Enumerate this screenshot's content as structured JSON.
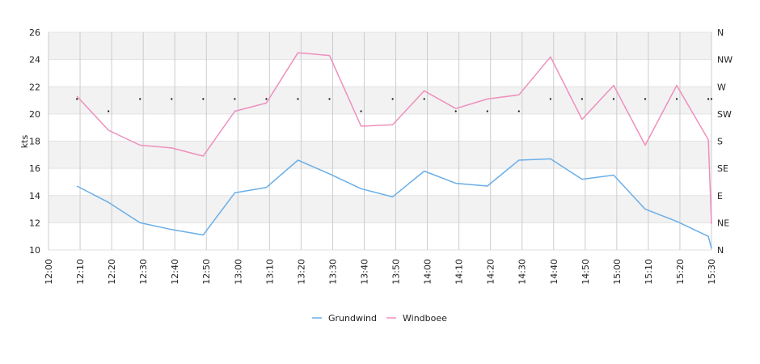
{
  "chart_data": {
    "type": "line",
    "ylabel": "kts",
    "ylim": [
      10,
      26
    ],
    "yticks": [
      10,
      12,
      14,
      16,
      18,
      20,
      22,
      24,
      26
    ],
    "x_range": [
      "12:00",
      "15:30"
    ],
    "x_ticks": [
      "12:00",
      "12:10",
      "12:20",
      "12:30",
      "12:40",
      "12:50",
      "13:00",
      "13:10",
      "13:20",
      "13:30",
      "13:40",
      "13:50",
      "14:00",
      "14:10",
      "14:20",
      "14:30",
      "14:40",
      "14:50",
      "15:00",
      "15:10",
      "15:20",
      "15:30"
    ],
    "right_axis_labels": [
      "N",
      "NE",
      "E",
      "SE",
      "S",
      "SW",
      "W",
      "NW",
      "N"
    ],
    "grid": true,
    "legend_position": "bottom",
    "series": [
      {
        "name": "Grundwind",
        "color": "#6aaee8",
        "x": [
          "12:09",
          "12:19",
          "12:29",
          "12:39",
          "12:49",
          "12:59",
          "13:09",
          "13:19",
          "13:29",
          "13:39",
          "13:49",
          "13:59",
          "14:09",
          "14:19",
          "14:29",
          "14:39",
          "14:49",
          "14:59",
          "15:09",
          "15:19",
          "15:29",
          "15:30"
        ],
        "values": [
          14.7,
          13.5,
          12.0,
          11.5,
          11.1,
          14.2,
          14.6,
          16.6,
          15.6,
          14.5,
          13.9,
          15.8,
          14.9,
          14.7,
          16.6,
          16.7,
          15.2,
          15.5,
          13.0,
          12.1,
          11.0,
          10.1
        ]
      },
      {
        "name": "Windboee",
        "color": "#ee8fbd",
        "x": [
          "12:09",
          "12:19",
          "12:29",
          "12:39",
          "12:49",
          "12:59",
          "13:09",
          "13:19",
          "13:29",
          "13:39",
          "13:49",
          "13:59",
          "14:09",
          "14:19",
          "14:29",
          "14:39",
          "14:49",
          "14:59",
          "15:09",
          "15:19",
          "15:29",
          "15:30"
        ],
        "values": [
          21.3,
          18.8,
          17.7,
          17.5,
          16.9,
          20.2,
          20.8,
          24.5,
          24.3,
          19.1,
          19.2,
          21.7,
          20.4,
          21.1,
          21.4,
          24.2,
          19.6,
          22.1,
          17.7,
          22.1,
          18.1,
          11.9
        ]
      }
    ],
    "direction_markers": {
      "x": [
        "12:09",
        "12:19",
        "12:29",
        "12:39",
        "12:49",
        "12:59",
        "13:09",
        "13:19",
        "13:29",
        "13:39",
        "13:49",
        "13:59",
        "14:09",
        "14:19",
        "14:29",
        "14:39",
        "14:49",
        "14:59",
        "15:09",
        "15:19",
        "15:29",
        "15:30"
      ],
      "values": [
        21.1,
        20.2,
        21.1,
        21.1,
        21.1,
        21.1,
        21.1,
        21.1,
        21.1,
        20.2,
        21.1,
        21.1,
        20.2,
        20.2,
        20.2,
        21.1,
        21.1,
        21.1,
        21.1,
        21.1,
        21.1,
        21.1
      ]
    }
  }
}
